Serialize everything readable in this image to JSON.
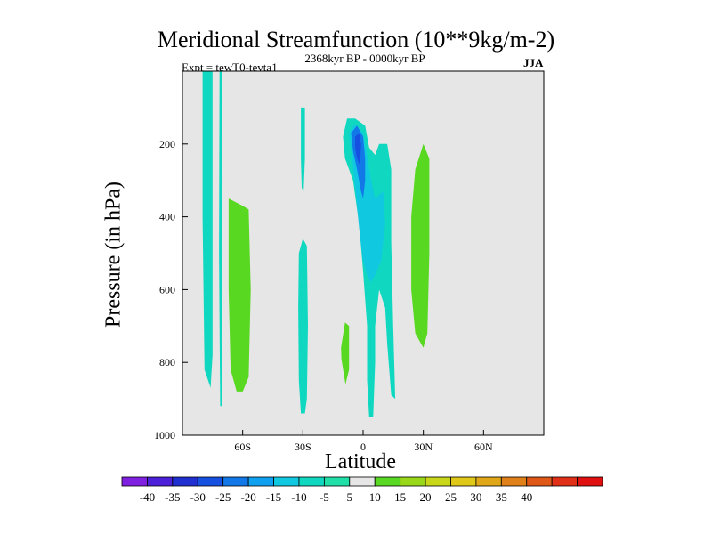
{
  "chart_data": {
    "type": "heatmap",
    "title": "Meridional Streamfunction (10**9kg/m-2)",
    "subtitle_left": "Expt = tewT0-tevta1",
    "subtitle_center": "2368kyr BP - 0000kyr BP",
    "subtitle_right": "JJA",
    "xlabel": "Latitude",
    "ylabel": "Pressure (in hPa)",
    "xlim": [
      -90,
      90
    ],
    "ylim": [
      1000,
      0
    ],
    "xticks": [
      {
        "value": -60,
        "label": "60S"
      },
      {
        "value": -30,
        "label": "30S"
      },
      {
        "value": 0,
        "label": "0"
      },
      {
        "value": 30,
        "label": "30N"
      },
      {
        "value": 60,
        "label": "60N"
      }
    ],
    "yticks": [
      {
        "value": 200,
        "label": "200"
      },
      {
        "value": 400,
        "label": "400"
      },
      {
        "value": 600,
        "label": "600"
      },
      {
        "value": 800,
        "label": "800"
      },
      {
        "value": 1000,
        "label": "1000"
      }
    ],
    "colorbar_labels": [
      "-40",
      "-35",
      "-30",
      "-25",
      "-20",
      "-15",
      "-10",
      "-5",
      "5",
      "10",
      "15",
      "20",
      "25",
      "30",
      "35",
      "40"
    ],
    "colorbar_colors": [
      "#7f1fe0",
      "#4b20d8",
      "#2030d0",
      "#1650e0",
      "#1278e8",
      "#10a0f0",
      "#10c8e0",
      "#10d8c0",
      "#20e0a8",
      "#e6e6e6",
      "#58d820",
      "#98d818",
      "#c8d818",
      "#e0c818",
      "#e0a818",
      "#e08018",
      "#e05818",
      "#e03018",
      "#e01010"
    ],
    "regions": [
      {
        "name": "far-south-column-a",
        "class": "-5 to 0",
        "points": [
          [
            -80,
            0
          ],
          [
            -75,
            0
          ],
          [
            -75,
            780
          ],
          [
            -76,
            870
          ],
          [
            -79,
            820
          ],
          [
            -80,
            400
          ]
        ]
      },
      {
        "name": "far-south-column-b",
        "class": "-5 to 0",
        "points": [
          [
            -71.5,
            0
          ],
          [
            -70.5,
            0
          ],
          [
            -70.2,
            920
          ],
          [
            -71.2,
            920
          ],
          [
            -71.8,
            500
          ]
        ]
      },
      {
        "name": "south-positive-cell",
        "class": "5 to 10",
        "points": [
          [
            -67,
            350
          ],
          [
            -60,
            370
          ],
          [
            -57,
            380
          ],
          [
            -56,
            600
          ],
          [
            -57,
            840
          ],
          [
            -60,
            880
          ],
          [
            -63,
            880
          ],
          [
            -66,
            820
          ],
          [
            -67,
            600
          ]
        ]
      },
      {
        "name": "upper-30s-blob",
        "class": "-5 to 0",
        "points": [
          [
            -31,
            100
          ],
          [
            -29,
            100
          ],
          [
            -29,
            240
          ],
          [
            -29.6,
            330
          ],
          [
            -30.6,
            320
          ],
          [
            -31,
            240
          ]
        ]
      },
      {
        "name": "lower-30s-column",
        "class": "-5 to 0",
        "points": [
          [
            -32,
            500
          ],
          [
            -30,
            460
          ],
          [
            -28,
            480
          ],
          [
            -27.5,
            700
          ],
          [
            -28,
            900
          ],
          [
            -29,
            940
          ],
          [
            -31,
            940
          ],
          [
            -32,
            850
          ],
          [
            -32.3,
            650
          ]
        ]
      },
      {
        "name": "small-positive-blob",
        "class": "5 to 10",
        "points": [
          [
            -11,
            760
          ],
          [
            -9,
            690
          ],
          [
            -7,
            700
          ],
          [
            -7,
            820
          ],
          [
            -8.8,
            860
          ],
          [
            -10.8,
            790
          ]
        ]
      },
      {
        "name": "main-negative-cell",
        "class": "-5 to 0",
        "points": [
          [
            -10,
            180
          ],
          [
            -8,
            130
          ],
          [
            -4,
            130
          ],
          [
            1,
            150
          ],
          [
            3,
            210
          ],
          [
            6,
            230
          ],
          [
            8,
            200
          ],
          [
            12,
            200
          ],
          [
            14,
            270
          ],
          [
            14,
            470
          ],
          [
            15,
            700
          ],
          [
            16,
            900
          ],
          [
            14,
            890
          ],
          [
            12,
            750
          ],
          [
            11,
            650
          ],
          [
            8,
            600
          ],
          [
            6,
            700
          ],
          [
            6,
            800
          ],
          [
            5,
            950
          ],
          [
            3,
            950
          ],
          [
            2,
            850
          ],
          [
            2,
            700
          ],
          [
            0,
            550
          ],
          [
            -2,
            420
          ],
          [
            -5,
            300
          ],
          [
            -9,
            240
          ]
        ]
      },
      {
        "name": "main-negative-core-10",
        "class": "-10 to -5",
        "points": [
          [
            -7,
            170
          ],
          [
            -4,
            145
          ],
          [
            0,
            170
          ],
          [
            2,
            230
          ],
          [
            4,
            300
          ],
          [
            6,
            350
          ],
          [
            10,
            330
          ],
          [
            11,
            420
          ],
          [
            9,
            520
          ],
          [
            6,
            560
          ],
          [
            4,
            580
          ],
          [
            2,
            560
          ],
          [
            0,
            520
          ],
          [
            -2,
            430
          ],
          [
            -5,
            260
          ]
        ]
      },
      {
        "name": "main-negative-core-15",
        "class": "-15 to -10",
        "points": [
          [
            -6,
            170
          ],
          [
            -3,
            150
          ],
          [
            0,
            180
          ],
          [
            1,
            240
          ],
          [
            1,
            300
          ],
          [
            0,
            350
          ],
          [
            -1,
            330
          ],
          [
            -3,
            270
          ],
          [
            -5,
            220
          ]
        ]
      },
      {
        "name": "main-negative-core-20",
        "class": "-20 to -15",
        "points": [
          [
            -4,
            180
          ],
          [
            -2,
            170
          ],
          [
            -1,
            200
          ],
          [
            -1.5,
            260
          ],
          [
            -3,
            240
          ],
          [
            -4,
            210
          ]
        ]
      },
      {
        "name": "north-positive-cell",
        "class": "5 to 10",
        "points": [
          [
            26,
            270
          ],
          [
            30,
            200
          ],
          [
            33,
            240
          ],
          [
            33,
            500
          ],
          [
            32,
            720
          ],
          [
            30,
            760
          ],
          [
            26,
            720
          ],
          [
            24,
            600
          ],
          [
            24,
            400
          ]
        ]
      }
    ]
  }
}
